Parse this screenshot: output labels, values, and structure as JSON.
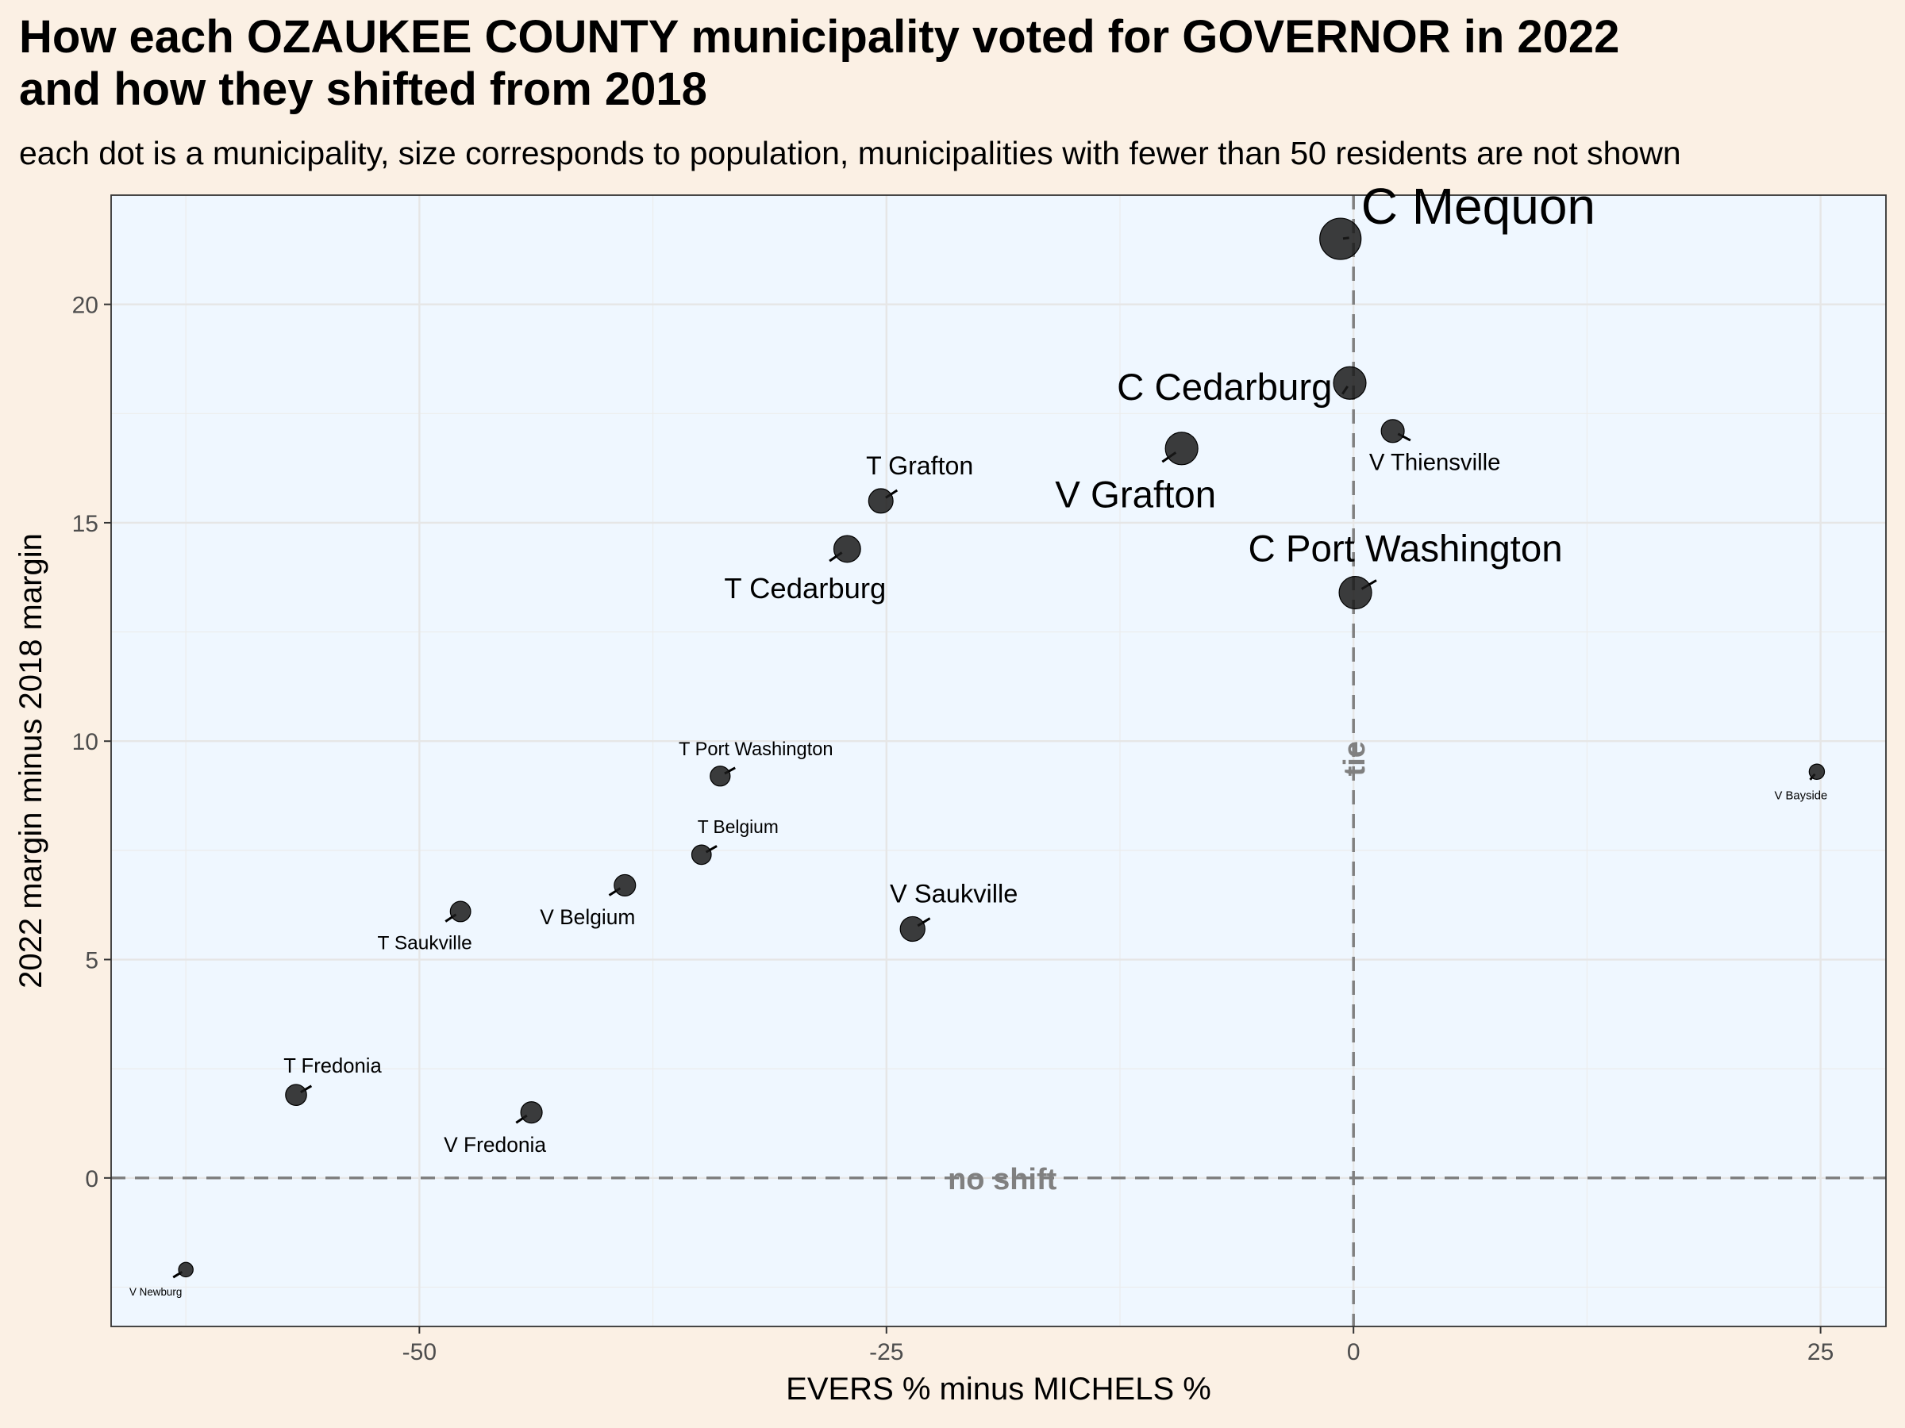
{
  "title_line1": "How each OZAUKEE COUNTY municipality voted for GOVERNOR in 2022",
  "title_line2": "and how they shifted from 2018",
  "subtitle": "each dot is a municipality, size corresponds to population, municipalities with fewer than 50 residents are not shown",
  "colors": {
    "page_background": "#fbf0e4",
    "panel_background": "#eff7ff",
    "point": "#1a1a1a",
    "reference_line": "#808080",
    "gridline": "#e6e6e6"
  },
  "chart_data": {
    "type": "scatter",
    "xlabel": "EVERS % minus MICHELS %",
    "ylabel": "2022 margin minus 2018 margin",
    "xlim": [
      -66.5,
      28.5
    ],
    "ylim": [
      -3.4,
      22.5
    ],
    "x_ticks": [
      -50,
      -25,
      0,
      25
    ],
    "x_tick_labels": [
      "-50",
      "-25",
      "0",
      "25"
    ],
    "y_ticks": [
      0,
      5,
      10,
      15,
      20
    ],
    "y_tick_labels": [
      "0",
      "5",
      "10",
      "15",
      "20"
    ],
    "grid": true,
    "reference_lines": [
      {
        "axis": "x",
        "value": 0,
        "label": "tie"
      },
      {
        "axis": "y",
        "value": 0,
        "label": "no shift"
      }
    ],
    "points": [
      {
        "label": "C Mequon",
        "x": -0.7,
        "y": 21.5,
        "size": 25000
      },
      {
        "label": "C Cedarburg",
        "x": -0.2,
        "y": 18.2,
        "size": 12000
      },
      {
        "label": "V Thiensville",
        "x": 2.1,
        "y": 17.1,
        "size": 3200
      },
      {
        "label": "V Grafton",
        "x": -9.2,
        "y": 16.7,
        "size": 12000
      },
      {
        "label": "T Grafton",
        "x": -25.3,
        "y": 15.5,
        "size": 4200
      },
      {
        "label": "T Cedarburg",
        "x": -27.1,
        "y": 14.4,
        "size": 6000
      },
      {
        "label": "C Port Washington",
        "x": 0.1,
        "y": 13.4,
        "size": 12000
      },
      {
        "label": "T Port Washington",
        "x": -33.9,
        "y": 9.2,
        "size": 1600
      },
      {
        "label": "V Bayside",
        "x": 24.8,
        "y": 9.3,
        "size": 200
      },
      {
        "label": "T Belgium",
        "x": -34.9,
        "y": 7.4,
        "size": 1400
      },
      {
        "label": "V Belgium",
        "x": -39.0,
        "y": 6.7,
        "size": 2300
      },
      {
        "label": "T Saukville",
        "x": -47.8,
        "y": 6.1,
        "size": 1800
      },
      {
        "label": "V Saukville",
        "x": -23.6,
        "y": 5.7,
        "size": 4400
      },
      {
        "label": "T Fredonia",
        "x": -56.6,
        "y": 1.9,
        "size": 2100
      },
      {
        "label": "V Fredonia",
        "x": -44.0,
        "y": 1.5,
        "size": 2300
      },
      {
        "label": "V Newburg",
        "x": -62.5,
        "y": -2.1,
        "size": 100
      }
    ]
  }
}
